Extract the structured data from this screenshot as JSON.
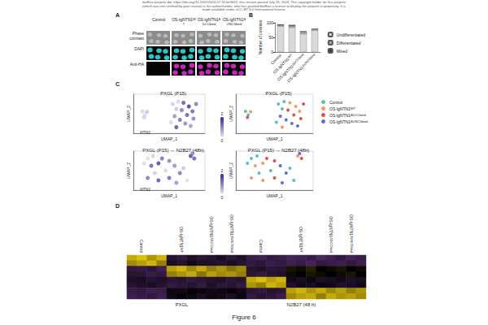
{
  "header": [
    "bioRxiv preprint doi: https://doi.org/10.1101/2024.07.16.603622; this version posted July 16, 2024. The copyright holder for this preprint",
    "(which was not certified by peer review) is the author/funder, who has granted bioRxiv a license to display the preprint in perpetuity. It is",
    "made available under aCC-BY 4.0 International license."
  ],
  "figure_label": "Figure 6",
  "panel_A": {
    "panel": "A",
    "columns": [
      {
        "base": "Control"
      },
      {
        "base": "OS-lgNTN1",
        "sup": "WT"
      },
      {
        "base": "OS-lgNTN1",
        "sup": "ΔDCCbind"
      },
      {
        "base": "OS-lgNTN1",
        "sup": "ΔUNC5bind"
      }
    ],
    "rows": [
      "Phase contrast",
      "DAPI",
      "Anti-HA"
    ]
  },
  "chart_data": [
    {
      "panel": "B",
      "type": "bar",
      "stacked": true,
      "categories": [
        {
          "base": "Control"
        },
        {
          "base": "OS-lgNTN1",
          "sup": "WT"
        },
        {
          "base": "OS-lgNTN1",
          "sup": "ΔDCCbind"
        },
        {
          "base": "OS-lgNTN1",
          "sup": "ΔUNC5bind"
        }
      ],
      "ylabel": "Number of colonies",
      "ylim": [
        0,
        100
      ],
      "yticks": [
        0,
        50,
        100
      ],
      "grid": false,
      "legend": "right",
      "series": [
        {
          "name": "Undifferentiated",
          "color": "#d9d9d9",
          "values": [
            88,
            84,
            62,
            74
          ]
        },
        {
          "name": "Differentiated",
          "color": "#a6a6a6",
          "values": [
            4,
            5,
            6,
            4
          ]
        },
        {
          "name": "Mixed",
          "color": "#404040",
          "values": [
            3,
            4,
            3,
            2
          ]
        }
      ]
    },
    {
      "panel": "C",
      "type": "scatter",
      "title": "PXGL (P15)",
      "gene": "NTN1",
      "xlabel": "UMAP_1",
      "ylabel": "UMAP_2",
      "xlim": [
        -10,
        10
      ],
      "ylim": [
        -8,
        8
      ],
      "tick_labels": false,
      "x": [
        -7.5,
        -6.8,
        -6.2,
        -7.0,
        1.0,
        2.5,
        4.0,
        5.5,
        6.5,
        2.0,
        3.5,
        5.0,
        6.8,
        1.5,
        3.0,
        4.5,
        6.0,
        0.5,
        2.0,
        7.5
      ],
      "y": [
        1.0,
        -0.5,
        0.8,
        -1.5,
        4.0,
        5.0,
        4.5,
        3.0,
        1.0,
        2.0,
        1.5,
        -0.5,
        -2.0,
        -1.0,
        -2.5,
        -4.0,
        -5.0,
        -3.5,
        -5.5,
        4.0
      ],
      "values": [
        0.1,
        0.0,
        0.3,
        0.2,
        0.2,
        0.1,
        1.6,
        1.9,
        1.4,
        0.3,
        1.2,
        1.5,
        1.1,
        0.9,
        1.3,
        1.0,
        0.8,
        0.1,
        1.7,
        1.2
      ],
      "colorbar": {
        "range": [
          0,
          2
        ]
      }
    },
    {
      "panel": "C",
      "type": "scatter",
      "title": "PXGL (P15)",
      "xlabel": "UMAP_1",
      "ylabel": "UMAP_2",
      "xlim": [
        -10,
        10
      ],
      "ylim": [
        -8,
        8
      ],
      "tick_labels": false,
      "legend": "right",
      "series": [
        {
          "name": {
            "base": "Control"
          },
          "color": "#2cb5a0",
          "x": [
            -7.5,
            -6.8,
            1.0,
            2.5,
            2.0,
            0.5
          ],
          "y": [
            1.0,
            -0.5,
            4.0,
            5.0,
            2.0,
            -3.5
          ]
        },
        {
          "name": {
            "base": "OS-lgNTN1",
            "sup": "WT"
          },
          "color": "#f0803c",
          "x": [
            -6.2,
            4.0,
            5.5,
            6.5,
            2.0
          ],
          "y": [
            0.8,
            4.5,
            3.0,
            1.0,
            -5.5
          ]
        },
        {
          "name": {
            "base": "OS-lgNTN1",
            "sup": "ΔDCCbind"
          },
          "color": "#d62728",
          "x": [
            -7.0,
            3.5,
            5.0,
            6.8,
            7.5
          ],
          "y": [
            -1.5,
            1.5,
            -0.5,
            -2.0,
            4.0
          ]
        },
        {
          "name": {
            "base": "OS-lgNTN1",
            "sup": "ΔUNC5bind"
          },
          "color": "#3b4cc0",
          "x": [
            1.5,
            3.0,
            4.5,
            6.0
          ],
          "y": [
            -1.0,
            -2.5,
            -4.0,
            -5.0
          ]
        }
      ]
    },
    {
      "panel": "C",
      "type": "scatter",
      "title": "PXGL (P15) → N2B27 (48h)",
      "gene": "NTN1",
      "xlabel": "UMAP_1",
      "ylabel": "UMAP_2",
      "xlim": [
        -10,
        10
      ],
      "ylim": [
        -8,
        8
      ],
      "tick_labels": false,
      "x": [
        -7,
        -6,
        -4.5,
        -5,
        -3,
        -2,
        0,
        1.5,
        -1,
        -4,
        -6,
        -3,
        0,
        2,
        3,
        4,
        6,
        7,
        6.5,
        5
      ],
      "y": [
        3,
        5,
        6,
        2,
        3,
        5,
        4,
        2,
        0,
        -1,
        -3,
        -4,
        -3,
        -5,
        -1,
        1,
        6,
        5,
        7,
        -4
      ],
      "values": [
        0.1,
        0.0,
        0.2,
        1.5,
        1.8,
        1.3,
        1.1,
        1.0,
        0.1,
        0.2,
        1.2,
        1.6,
        1.4,
        0.9,
        1.2,
        0.3,
        1.7,
        1.5,
        1.1,
        0.0
      ],
      "colorbar": {
        "range": [
          0,
          2
        ]
      }
    },
    {
      "panel": "C",
      "type": "scatter",
      "title": "PXGL (P15) → N2B27 (48h)",
      "xlabel": "UMAP_1",
      "ylabel": "UMAP_2",
      "xlim": [
        -10,
        10
      ],
      "ylim": [
        -8,
        8
      ],
      "tick_labels": false,
      "legend": "right",
      "series": [
        {
          "name": {
            "base": "Control"
          },
          "color": "#2cb5a0",
          "x": [
            -7,
            -6,
            -4.5,
            -1,
            -4,
            4,
            5
          ],
          "y": [
            3,
            5,
            6,
            0,
            -1,
            1,
            -4
          ]
        },
        {
          "name": {
            "base": "OS-lgNTN1",
            "sup": "WT"
          },
          "color": "#f0803c",
          "x": [
            -5,
            -3,
            -6,
            -3,
            6
          ],
          "y": [
            2,
            3,
            -3,
            -4,
            6
          ]
        },
        {
          "name": {
            "base": "OS-lgNTN1",
            "sup": "ΔDCCbind"
          },
          "color": "#d62728",
          "x": [
            -2,
            0,
            0,
            7
          ],
          "y": [
            5,
            4,
            -3,
            5
          ]
        },
        {
          "name": {
            "base": "OS-lgNTN1",
            "sup": "ΔUNC5bind"
          },
          "color": "#3b4cc0",
          "x": [
            1.5,
            2,
            3,
            6.5
          ],
          "y": [
            2,
            -5,
            -1,
            7
          ]
        }
      ]
    },
    {
      "panel": "D",
      "type": "heatmap",
      "tick_labels": "x",
      "rows": [
        null,
        null,
        null,
        null,
        null,
        null,
        null,
        null
      ],
      "column_groups": [
        {
          "label": {
            "base": "Control"
          },
          "span": 4
        },
        {
          "label": {
            "base": "OS-lgNTN1",
            "sup": "WT"
          },
          "span": 4
        },
        {
          "label": {
            "base": "OS-lgNTN1",
            "sup": "ΔDCCbind"
          },
          "span": 2
        },
        {
          "label": {
            "base": "OS-lgNTN1",
            "sup": "ΔUNC5bind"
          },
          "span": 2
        },
        {
          "label": {
            "base": "Control"
          },
          "span": 4
        },
        {
          "label": {
            "base": "OS-lgNTN1",
            "sup": "WT"
          },
          "span": 4
        },
        {
          "label": {
            "base": "OS-lgNTN1",
            "sup": "ΔDCCbind"
          },
          "span": 2
        },
        {
          "label": {
            "base": "OS-lgNTN1",
            "sup": "ΔUNC5bind"
          },
          "span": 2
        }
      ],
      "media": [
        {
          "label": "PXGL",
          "span": 12
        },
        {
          "label": "N2B27 (48 h)",
          "span": 12
        }
      ],
      "zlim": [
        -2,
        2
      ],
      "cells": [
        [
          1.6,
          1.8,
          1.4,
          1.7,
          -0.6,
          -0.8,
          -0.5,
          -0.7,
          -0.6,
          -0.4,
          -0.7,
          -0.5,
          -0.9,
          -1.0,
          -0.8,
          -0.9,
          -1.1,
          -1.0,
          -0.9,
          -1.2,
          -1.0,
          -0.8,
          -1.1,
          -0.9
        ],
        [
          1.3,
          1.5,
          1.7,
          1.2,
          -0.4,
          -0.6,
          -0.3,
          -0.5,
          -0.5,
          -0.6,
          -0.4,
          -0.6,
          -0.8,
          -0.7,
          -0.9,
          -0.8,
          -1.0,
          -0.9,
          -1.1,
          -0.8,
          -0.9,
          -1.0,
          -0.8,
          -1.0
        ],
        [
          -0.8,
          -0.9,
          -0.7,
          -1.0,
          1.5,
          1.7,
          1.3,
          1.6,
          1.2,
          1.4,
          1.1,
          1.3,
          -0.6,
          -0.5,
          -0.7,
          -0.6,
          0.2,
          0.1,
          0.3,
          0.0,
          0.1,
          0.2,
          0.0,
          0.1
        ],
        [
          -0.6,
          -0.7,
          -0.9,
          -0.8,
          1.2,
          1.4,
          1.6,
          1.1,
          1.5,
          1.3,
          1.4,
          1.2,
          -0.7,
          -0.8,
          -0.6,
          -0.5,
          0.1,
          0.0,
          0.2,
          0.1,
          0.0,
          0.1,
          0.2,
          0.0
        ],
        [
          -0.5,
          -0.4,
          -0.6,
          -0.5,
          -0.7,
          -0.6,
          -0.8,
          -0.7,
          -0.6,
          -0.5,
          -0.7,
          -0.6,
          1.6,
          1.8,
          1.5,
          1.7,
          -0.3,
          -0.4,
          -0.2,
          -0.5,
          -0.4,
          -0.3,
          -0.5,
          -0.4
        ],
        [
          -0.6,
          -0.5,
          -0.4,
          -0.6,
          -0.8,
          -0.7,
          -0.6,
          -0.8,
          -0.5,
          -0.7,
          -0.6,
          -0.8,
          1.4,
          1.2,
          1.7,
          1.5,
          -0.5,
          -0.3,
          -0.4,
          -0.2,
          -0.3,
          -0.5,
          -0.4,
          -0.3
        ],
        [
          -0.9,
          -0.8,
          -1.0,
          -0.9,
          -0.2,
          -0.3,
          -0.1,
          -0.2,
          -0.3,
          -0.2,
          -0.1,
          -0.3,
          -0.7,
          -0.8,
          -0.6,
          -0.7,
          1.5,
          1.7,
          1.4,
          1.6,
          1.3,
          1.5,
          1.2,
          1.4
        ],
        [
          -1.0,
          -0.9,
          -0.8,
          -1.0,
          -0.3,
          -0.1,
          -0.2,
          -0.4,
          -0.2,
          -0.3,
          -0.4,
          -0.2,
          -0.8,
          -0.6,
          -0.7,
          -0.9,
          1.3,
          1.5,
          1.6,
          1.2,
          1.6,
          1.4,
          1.5,
          1.3
        ]
      ]
    }
  ]
}
